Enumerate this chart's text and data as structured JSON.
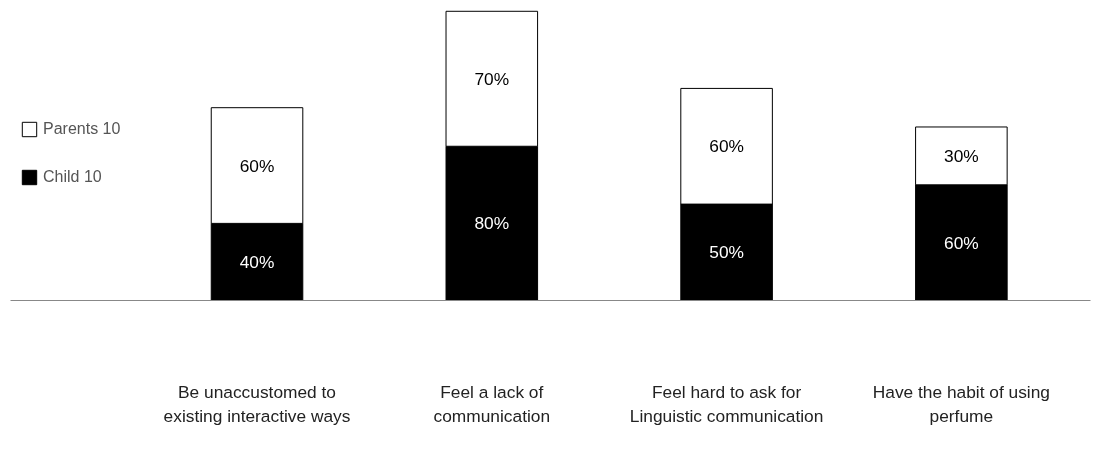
{
  "chart_data": {
    "type": "bar",
    "stacked": true,
    "legend": "left",
    "grid": false,
    "categories": [
      "Be unaccustomed to existing interactive ways",
      "Feel a lack of communication",
      "Feel hard to ask for Linguistic communication",
      "Have the habit of using perfume"
    ],
    "series": [
      {
        "name": "Child 10",
        "color": "#000000",
        "values": [
          40,
          80,
          50,
          60
        ],
        "value_labels": [
          "40%",
          "80%",
          "50%",
          "60%"
        ]
      },
      {
        "name": "Parents 10",
        "color": "#ffffff",
        "values": [
          60,
          70,
          60,
          30
        ],
        "value_labels": [
          "60%",
          "70%",
          "60%",
          "30%"
        ]
      }
    ]
  }
}
